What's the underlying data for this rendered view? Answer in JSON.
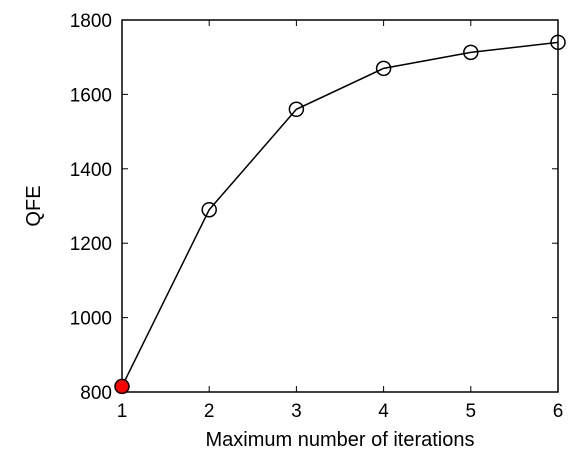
{
  "chart_data": {
    "type": "line",
    "title": "",
    "xlabel": "Maximum number of iterations",
    "ylabel": "QFE",
    "xlim": [
      1,
      6
    ],
    "ylim": [
      800,
      1800
    ],
    "xticks": [
      "1",
      "2",
      "3",
      "4",
      "5",
      "6"
    ],
    "yticks": [
      "800",
      "1000",
      "1200",
      "1400",
      "1600",
      "1800"
    ],
    "grid": false,
    "legend": "none",
    "series": [
      {
        "x": [
          1,
          2,
          3,
          4,
          5,
          6
        ],
        "values": [
          815,
          1290,
          1560,
          1670,
          1713,
          1740
        ],
        "color": "#000000",
        "marker": "open-circle",
        "highlight": {
          "index": 0,
          "color": "#ff0000"
        }
      }
    ]
  }
}
